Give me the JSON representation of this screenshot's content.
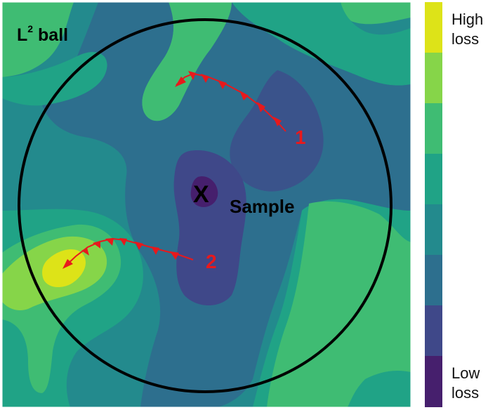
{
  "title": {
    "base": "L",
    "superscript": "2",
    "suffix": " ball"
  },
  "center": {
    "marker": "X",
    "label": "Sample"
  },
  "paths": [
    {
      "label": "1",
      "color": "#e8191c"
    },
    {
      "label": "2",
      "color": "#e8191c"
    }
  ],
  "colorbar": {
    "top_label_line1": "High",
    "top_label_line2": "loss",
    "bottom_label_line1": "Low",
    "bottom_label_line2": "loss",
    "levels_high_to_low": [
      "#dde318",
      "#86d549",
      "#3fbc73",
      "#20a386",
      "#238a8d",
      "#2d6f8e",
      "#3f4889",
      "#461f6d"
    ]
  },
  "colors": {
    "ball_outline": "#000000",
    "text": "#000000",
    "arrow": "#e8191c"
  }
}
